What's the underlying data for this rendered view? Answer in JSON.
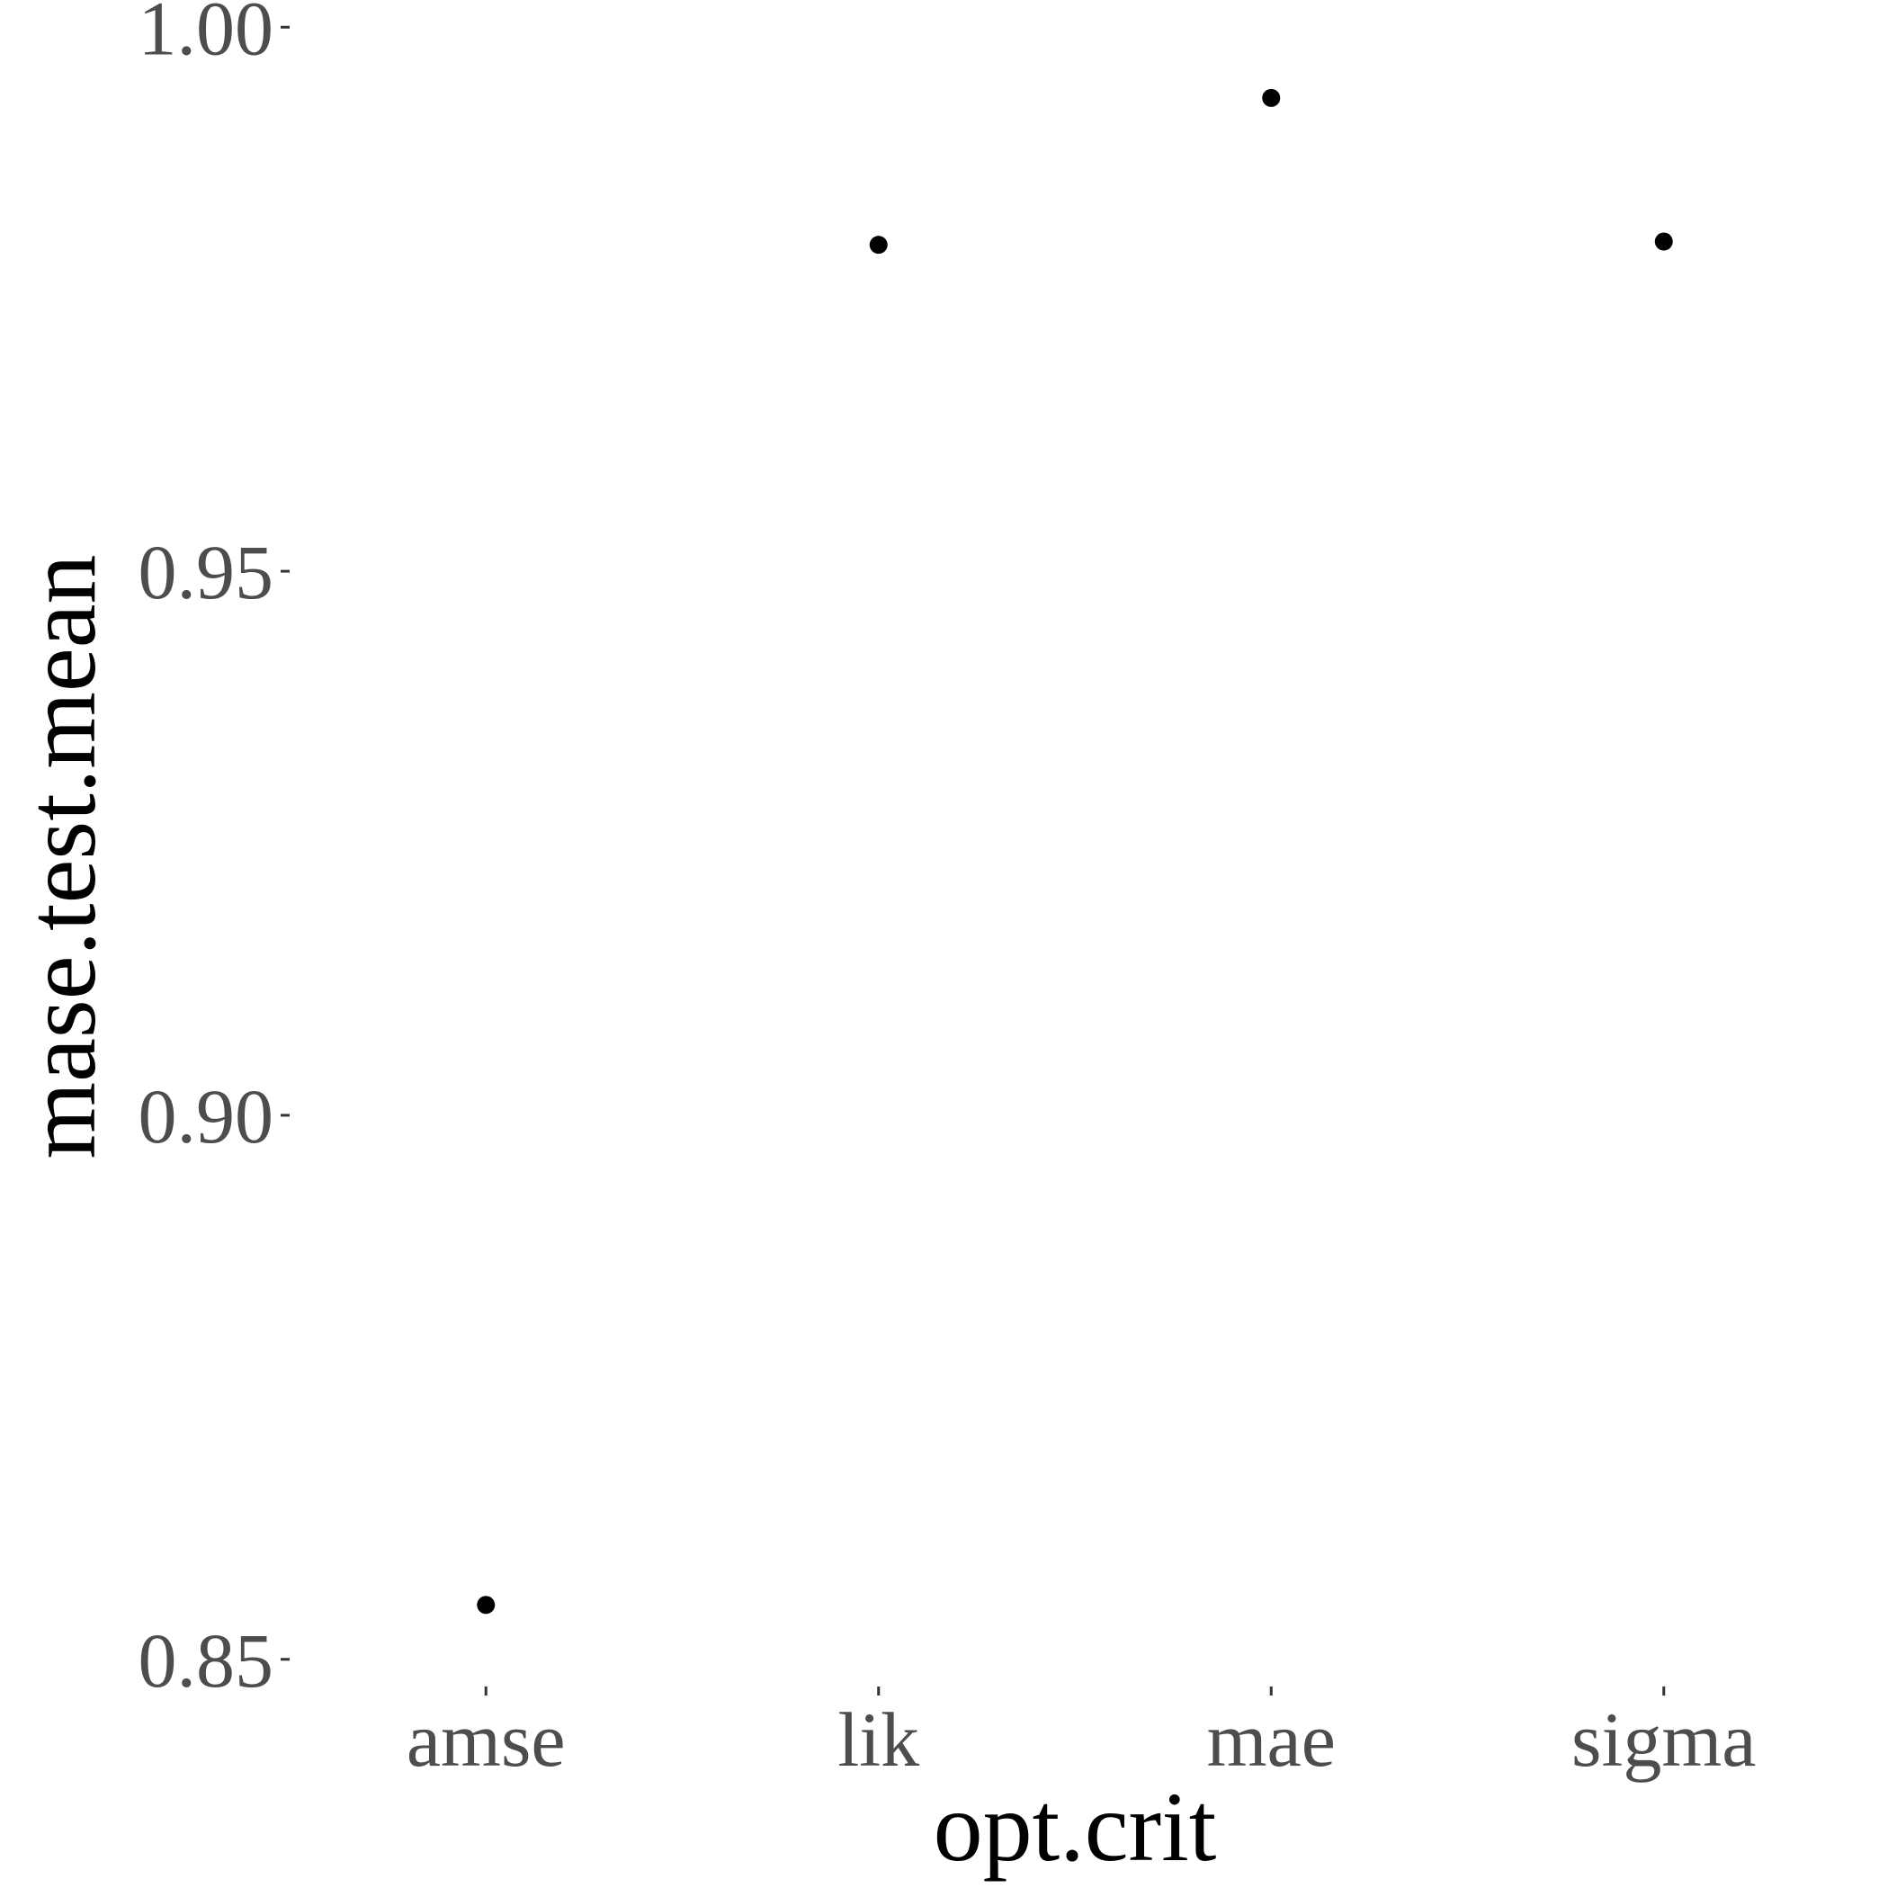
{
  "chart_data": {
    "type": "scatter",
    "title": "",
    "xlabel": "opt.crit",
    "ylabel": "mase.test.mean",
    "categories": [
      "amse",
      "lik",
      "mae",
      "sigma"
    ],
    "values": [
      0.855,
      0.98,
      0.9935,
      0.9803
    ],
    "ylim": [
      0.8475,
      1.0025
    ],
    "yticks": [
      0.85,
      0.9,
      0.95,
      1.0
    ],
    "ytick_labels": [
      "0.85",
      "0.90",
      "0.95",
      "1.00"
    ],
    "grid": false,
    "legend": "none",
    "point_color": "#000000"
  }
}
